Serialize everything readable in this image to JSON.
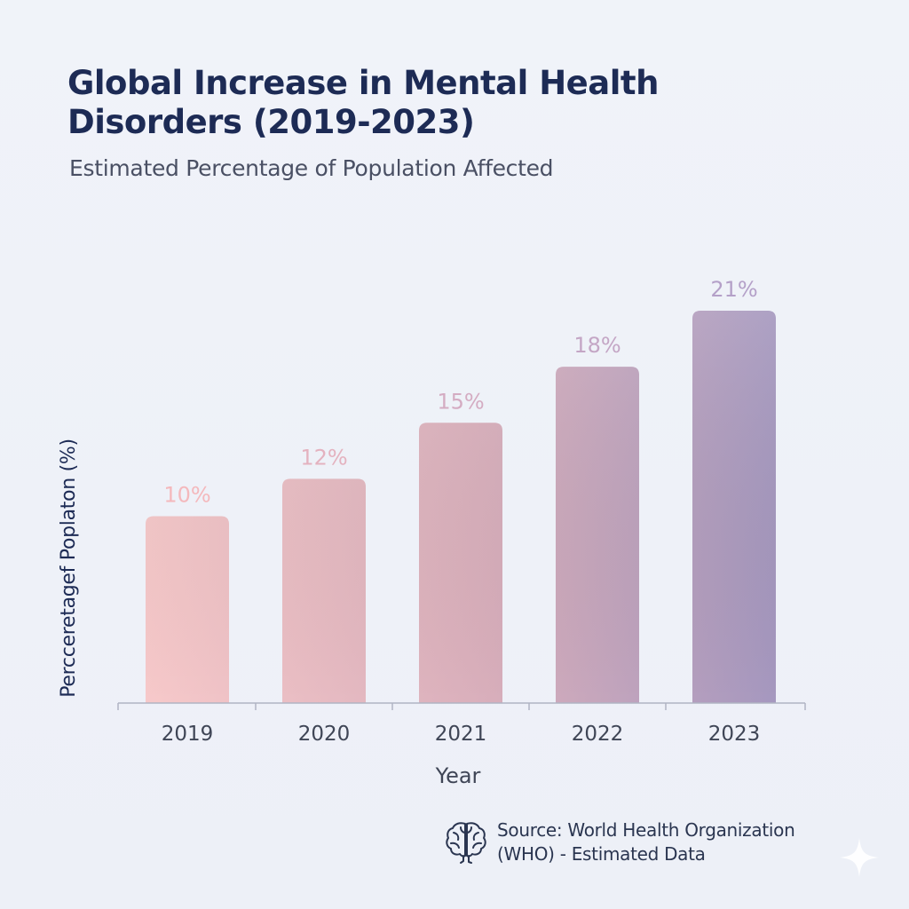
{
  "chart_data": {
    "type": "bar",
    "title": "Global Increase in Mental Health Disorders (2019-2023)",
    "subtitle": "Estimated Percentage of Population Affected",
    "xlabel": "Year",
    "ylabel": "Percceretagef Poplaton (%)",
    "categories": [
      "2019",
      "2020",
      "2021",
      "2022",
      "2023"
    ],
    "values": [
      10,
      12,
      15,
      18,
      21
    ],
    "data_labels": [
      "10%",
      "12%",
      "15%",
      "18%",
      "21%"
    ],
    "ylim": [
      0,
      22
    ],
    "grid": false,
    "legend": "none",
    "colors": {
      "gradient_start": "#f7c9ca",
      "gradient_end": "#a497bf",
      "label_start": "#f4b8bc",
      "label_end": "#b4a0c8",
      "axis": "#b0b4c4",
      "tick_text": "#3f4556",
      "title": "#1d2b55"
    }
  },
  "source": {
    "text": "Source: World Health Organization (WHO) - Estimated Data",
    "icon": "brain-icon"
  }
}
